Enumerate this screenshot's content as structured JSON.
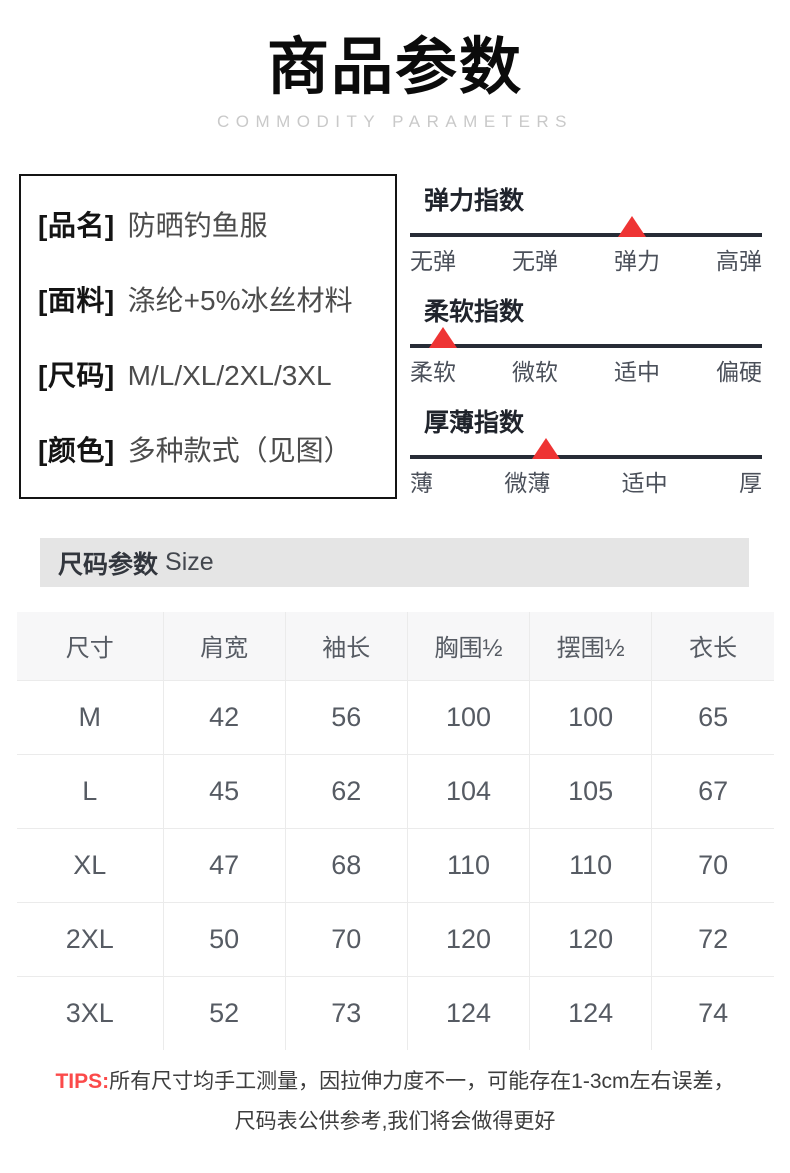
{
  "header": {
    "title": "商品参数",
    "subtitle": "COMMODITY PARAMETERS"
  },
  "product_info": {
    "rows": [
      {
        "label": "[品名]",
        "value": "防晒钓鱼服"
      },
      {
        "label": "[面料]",
        "value": "涤纶+5%冰丝材料"
      },
      {
        "label": "[尺码]",
        "value": "M/L/XL/2XL/3XL"
      },
      {
        "label": "[颜色]",
        "value": "多种款式（见图）"
      }
    ]
  },
  "indices": [
    {
      "title": "弹力指数",
      "labels": [
        "无弹",
        "无弹",
        "弹力",
        "高弹"
      ],
      "active_label": "弹力",
      "marker_left_percent": 63
    },
    {
      "title": "柔软指数",
      "labels": [
        "柔软",
        "微软",
        "适中",
        "偏硬"
      ],
      "active_label": "柔软",
      "marker_left_percent": 9.5
    },
    {
      "title": "厚薄指数",
      "labels": [
        "薄",
        "微薄",
        "适中",
        "厚"
      ],
      "active_label": "微薄",
      "marker_left_percent": 38.5
    }
  ],
  "size_section": {
    "title": "尺码参数",
    "title_en": "Size"
  },
  "size_table": {
    "columns": [
      "尺寸",
      "肩宽",
      "袖长",
      "胸围½",
      "摆围½",
      "衣长"
    ],
    "rows": [
      [
        "M",
        "42",
        "56",
        "100",
        "100",
        "65"
      ],
      [
        "L",
        "45",
        "62",
        "104",
        "105",
        "67"
      ],
      [
        "XL",
        "47",
        "68",
        "110",
        "110",
        "70"
      ],
      [
        "2XL",
        "50",
        "70",
        "120",
        "120",
        "72"
      ],
      [
        "3XL",
        "52",
        "73",
        "124",
        "124",
        "74"
      ]
    ]
  },
  "tips": {
    "label": "TIPS:",
    "line1": "所有尺寸均手工测量，因拉伸力度不一，可能存在1-3cm左右误差，",
    "line2": "尺码表公供参考,我们将会做得更好"
  },
  "colors": {
    "marker_red": "#ee3434",
    "tips_red": "#fb4a4a",
    "scale_line_dark": "#272c36",
    "size_bar_gray": "#e5e5e5",
    "table_header_gray": "#f7f7f8"
  }
}
